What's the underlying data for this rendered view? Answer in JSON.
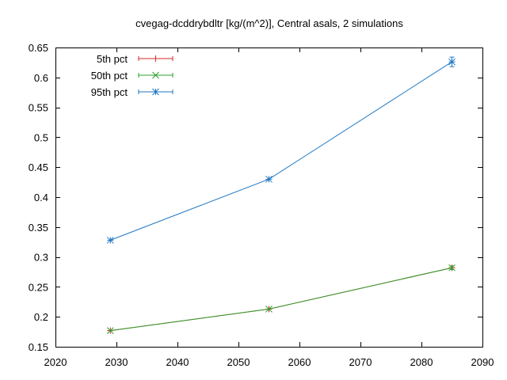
{
  "chart_data": {
    "type": "line",
    "title": "cvegag-dcddrybdltr [kg/(m^2)], Central asals, 2 simulations",
    "xlabel": "",
    "ylabel": "",
    "xlim": [
      2020,
      2090
    ],
    "ylim": [
      0.15,
      0.65
    ],
    "xticks": [
      2020,
      2030,
      2040,
      2050,
      2060,
      2070,
      2080,
      2090
    ],
    "yticks": [
      0.15,
      0.2,
      0.25,
      0.3,
      0.35,
      0.4,
      0.45,
      0.5,
      0.55,
      0.6,
      0.65
    ],
    "xtick_labels": [
      "2020",
      "2030",
      "2040",
      "2050",
      "2060",
      "2070",
      "2080",
      "2090"
    ],
    "ytick_labels": [
      "0.15",
      "0.2",
      "0.25",
      "0.3",
      "0.35",
      "0.4",
      "0.45",
      "0.5",
      "0.55",
      "0.6",
      "0.65"
    ],
    "grid": false,
    "legend_position": "top-left",
    "series": [
      {
        "name": "5th pct",
        "color": "#d62728",
        "marker": "plus",
        "x": [
          2029,
          2055,
          2085
        ],
        "values": [
          0.177,
          0.213,
          0.282
        ],
        "error": [
          0.0,
          0.0,
          0.003
        ]
      },
      {
        "name": "50th pct",
        "color": "#2ca02c",
        "marker": "cross",
        "x": [
          2029,
          2055,
          2085
        ],
        "values": [
          0.177,
          0.213,
          0.282
        ],
        "error": [
          0.0,
          0.0,
          0.003
        ]
      },
      {
        "name": "95th pct",
        "color": "#1f77c4",
        "marker": "star",
        "x": [
          2029,
          2055,
          2085
        ],
        "values": [
          0.328,
          0.43,
          0.626
        ],
        "error": [
          0.0,
          0.0,
          0.008
        ]
      }
    ]
  }
}
